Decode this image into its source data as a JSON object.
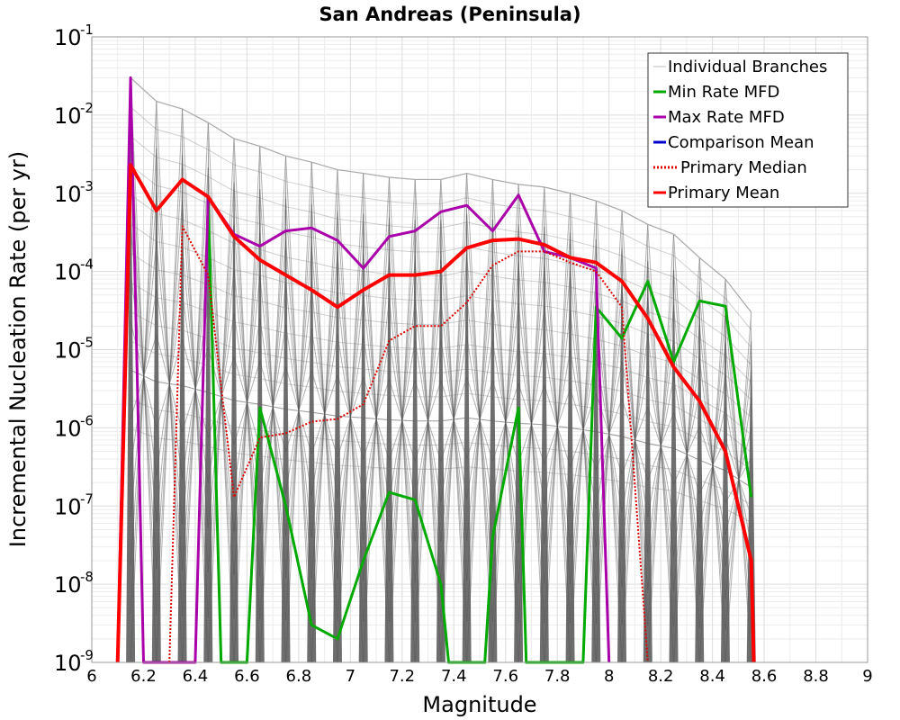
{
  "chart_data": {
    "type": "line",
    "title": "San Andreas (Peninsula)",
    "xlabel": "Magnitude",
    "ylabel": "Incremental Nucleation Rate (per yr)",
    "xlim": [
      6,
      9
    ],
    "ylim": [
      1e-09,
      0.1
    ],
    "yscale": "log",
    "grid": true,
    "legend_position": "top-right",
    "xticks": [
      "6",
      "6.2",
      "6.4",
      "6.6",
      "6.8",
      "7",
      "7.2",
      "7.4",
      "7.6",
      "7.8",
      "8",
      "8.2",
      "8.4",
      "8.6",
      "8.8",
      "9"
    ],
    "yticks": [
      {
        "base": "10",
        "exp": "-9",
        "value": 1e-09
      },
      {
        "base": "10",
        "exp": "-8",
        "value": 1e-08
      },
      {
        "base": "10",
        "exp": "-7",
        "value": 1e-07
      },
      {
        "base": "10",
        "exp": "-6",
        "value": 1e-06
      },
      {
        "base": "10",
        "exp": "-5",
        "value": 1e-05
      },
      {
        "base": "10",
        "exp": "-4",
        "value": 0.0001
      },
      {
        "base": "10",
        "exp": "-3",
        "value": 0.001
      },
      {
        "base": "10",
        "exp": "-2",
        "value": 0.01
      },
      {
        "base": "10",
        "exp": "-1",
        "value": 0.1
      }
    ],
    "band": {
      "name": "Individual Branches",
      "color": "#555555",
      "x": [
        6.15,
        6.25,
        6.35,
        6.45,
        6.55,
        6.65,
        6.75,
        6.85,
        6.95,
        7.05,
        7.15,
        7.25,
        7.35,
        7.45,
        7.55,
        7.65,
        7.75,
        7.85,
        7.95,
        8.05,
        8.15,
        8.25,
        8.35,
        8.45,
        8.55
      ],
      "upper": [
        0.03,
        0.015,
        0.012,
        0.008,
        0.005,
        0.004,
        0.003,
        0.0025,
        0.002,
        0.0018,
        0.0016,
        0.0015,
        0.0015,
        0.0018,
        0.0015,
        0.0013,
        0.0012,
        0.001,
        0.0008,
        0.0006,
        0.0004,
        0.0003,
        0.00015,
        8e-05,
        3e-05
      ]
    },
    "series": [
      {
        "name": "Min Rate MFD",
        "color": "#00aa00",
        "style": "solid",
        "x": [
          6.45,
          6.5,
          6.6,
          6.65,
          6.75,
          6.85,
          6.95,
          7.05,
          7.15,
          7.25,
          7.35,
          7.38,
          7.52,
          7.55,
          7.65,
          7.68,
          7.9,
          7.95,
          8.05,
          8.15,
          8.25,
          8.35,
          8.45,
          8.55
        ],
        "values": [
          0.0009,
          1e-09,
          1e-09,
          1.8e-06,
          1e-07,
          3e-09,
          2e-09,
          2e-08,
          1.5e-07,
          1.2e-07,
          1e-08,
          1e-09,
          1e-09,
          4e-08,
          1.8e-06,
          1e-09,
          1e-09,
          3.5e-05,
          1.4e-05,
          7.5e-05,
          7e-06,
          4.2e-05,
          3.6e-05,
          1.3e-07
        ]
      },
      {
        "name": "Max Rate MFD",
        "color": "#aa00aa",
        "style": "solid",
        "x": [
          6.1,
          6.15,
          6.2,
          6.32,
          6.4,
          6.45,
          6.55,
          6.65,
          6.75,
          6.85,
          6.95,
          7.05,
          7.15,
          7.25,
          7.35,
          7.45,
          7.55,
          7.65,
          7.75,
          7.85,
          7.95,
          8.0
        ],
        "values": [
          1e-09,
          0.03,
          1e-09,
          1e-09,
          1e-09,
          0.0009,
          0.0003,
          0.00021,
          0.00033,
          0.00036,
          0.00025,
          0.00011,
          0.00028,
          0.00033,
          0.00058,
          0.0007,
          0.00033,
          0.00095,
          0.00018,
          0.00015,
          0.00011,
          1e-09
        ]
      },
      {
        "name": "Comparison Mean",
        "color": "#0000cc",
        "style": "solid",
        "x": [],
        "values": []
      },
      {
        "name": "Primary Median",
        "color": "#dd0000",
        "style": "dotted",
        "x": [
          6.3,
          6.35,
          6.45,
          6.55,
          6.65,
          6.75,
          6.85,
          6.95,
          7.05,
          7.15,
          7.25,
          7.35,
          7.45,
          7.55,
          7.65,
          7.75,
          7.85,
          7.95,
          8.05,
          8.15
        ],
        "values": [
          1e-09,
          0.00038,
          9e-05,
          1.3e-07,
          7.5e-07,
          8.5e-07,
          1.2e-06,
          1.3e-06,
          2e-06,
          1.3e-05,
          2e-05,
          2e-05,
          4e-05,
          0.00012,
          0.00018,
          0.00018,
          0.00013,
          0.0001,
          3.5e-05,
          1e-09
        ]
      },
      {
        "name": "Primary Mean",
        "color": "#ff0000",
        "style": "solid",
        "x": [
          6.1,
          6.15,
          6.25,
          6.35,
          6.45,
          6.55,
          6.65,
          6.75,
          6.85,
          6.95,
          7.05,
          7.15,
          7.25,
          7.35,
          7.45,
          7.55,
          7.65,
          7.75,
          7.85,
          7.95,
          8.05,
          8.15,
          8.25,
          8.35,
          8.45,
          8.55,
          8.56
        ],
        "values": [
          1e-09,
          0.0023,
          0.0006,
          0.0015,
          0.0009,
          0.00028,
          0.00014,
          9e-05,
          5.8e-05,
          3.5e-05,
          5.8e-05,
          9e-05,
          9e-05,
          0.0001,
          0.0002,
          0.00025,
          0.00026,
          0.00022,
          0.00015,
          0.00013,
          7.5e-05,
          2.5e-05,
          6e-06,
          2.2e-06,
          5e-07,
          2e-08,
          1e-09
        ]
      }
    ]
  }
}
